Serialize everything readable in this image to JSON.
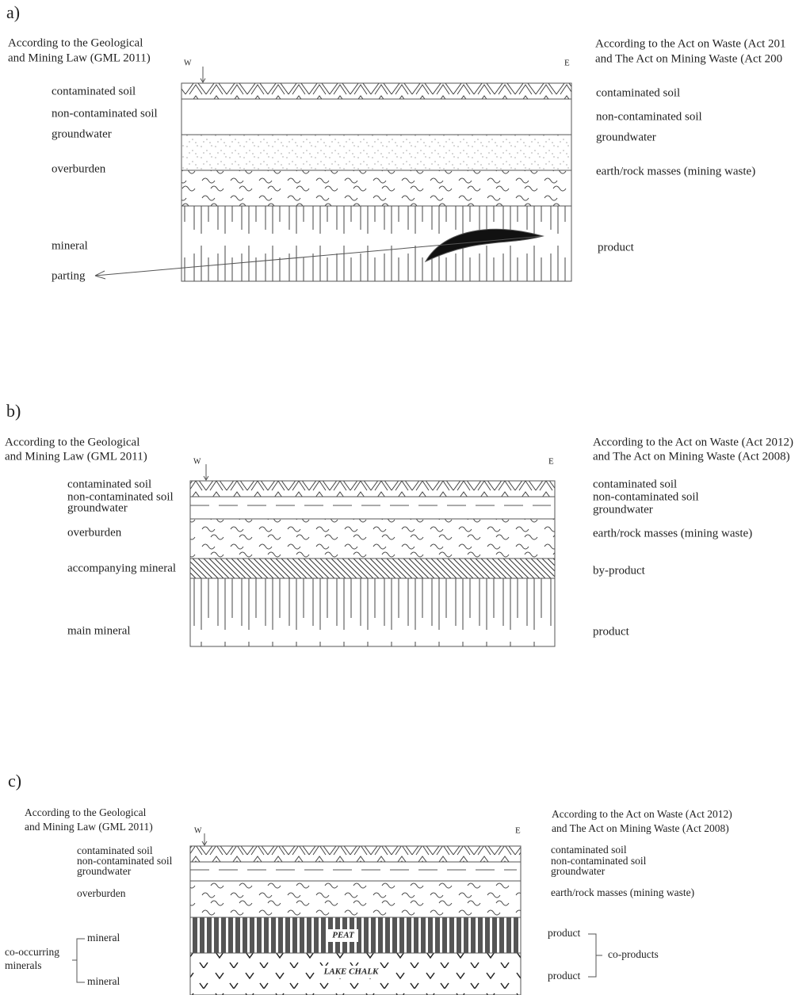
{
  "panels": [
    {
      "label": "a)",
      "left_heading": [
        "According to the Geological",
        "and Mining Law (GML 2011)"
      ],
      "right_heading": [
        "According to the Act on Waste (Act 201",
        "and The Act on Mining Waste (Act 200"
      ],
      "west": "W",
      "east": "E",
      "left_labels": [
        "contaminated soil",
        "non-contaminated soil",
        "groundwater",
        "overburden",
        "mineral",
        "parting"
      ],
      "right_labels": [
        "contaminated soil",
        "non-contaminated soil",
        "groundwater",
        "earth/rock masses (mining waste)",
        "product"
      ]
    },
    {
      "label": "b)",
      "left_heading": [
        "According to the Geological",
        "and Mining Law (GML 2011)"
      ],
      "right_heading": [
        "According to the Act on Waste (Act 2012)",
        "and The Act on Mining Waste (Act 2008)"
      ],
      "west": "W",
      "east": "E",
      "left_labels": [
        "contaminated soil",
        "non-contaminated soil",
        "groundwater",
        "overburden",
        "accompanying mineral",
        "main mineral"
      ],
      "right_labels": [
        "contaminated soil",
        "non-contaminated soil",
        "groundwater",
        "earth/rock masses (mining waste)",
        "by-product",
        "product"
      ]
    },
    {
      "label": "c)",
      "left_heading": [
        "According to the Geological",
        "and Mining Law (GML 2011)"
      ],
      "right_heading": [
        "According to the Act on Waste (Act 2012)",
        "and The Act on Mining Waste (Act 2008)"
      ],
      "west": "W",
      "east": "E",
      "left_labels": [
        "contaminated soil",
        "non-contaminated soil",
        "groundwater",
        "overburden",
        "mineral",
        "mineral"
      ],
      "right_labels": [
        "contaminated soil",
        "non-contaminated soil",
        "groundwater",
        "earth/rock masses (mining waste)",
        "product",
        "product"
      ],
      "group_label": [
        "co-occurring",
        "minerals"
      ],
      "group_right": "co-products",
      "layer_labels": [
        "PEAT",
        "LAKE CHALK"
      ]
    }
  ]
}
